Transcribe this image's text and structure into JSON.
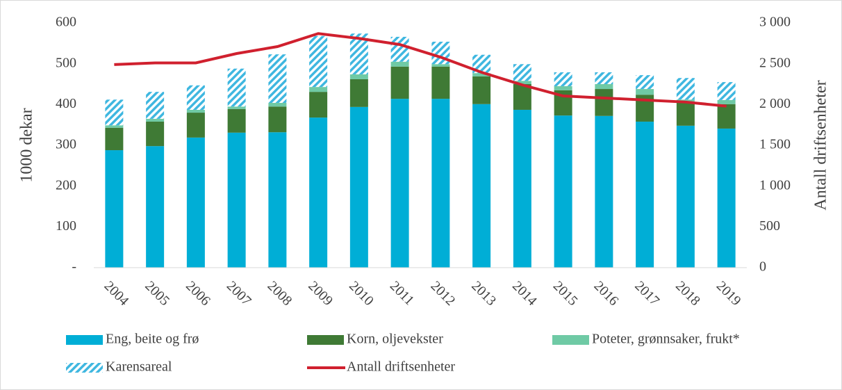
{
  "chart_data": {
    "type": "bar",
    "categories": [
      "2004",
      "2005",
      "2006",
      "2007",
      "2008",
      "2009",
      "2010",
      "2011",
      "2012",
      "2013",
      "2014",
      "2015",
      "2016",
      "2017",
      "2018",
      "2019"
    ],
    "y_label": "1000 dekar",
    "y2_label": "Antall driftsenheter",
    "ylim": [
      0,
      600
    ],
    "yticks": [
      {
        "value": 0,
        "label": "-"
      },
      100,
      200,
      300,
      400,
      500,
      600
    ],
    "y2lim": [
      0,
      3000
    ],
    "y2ticks": [
      0,
      500,
      {
        "value": 1000,
        "label": "1 000"
      },
      {
        "value": 1500,
        "label": "1 500"
      },
      {
        "value": 2000,
        "label": "2 000"
      },
      {
        "value": 2500,
        "label": "2 500"
      },
      {
        "value": 3000,
        "label": "3 000"
      }
    ],
    "grid": false,
    "stacked": true,
    "series": [
      {
        "name": "Eng, beite og frø",
        "color": "#00aed6",
        "values": [
          288,
          298,
          319,
          331,
          332,
          368,
          394,
          414,
          414,
          401,
          387,
          373,
          372,
          358,
          348,
          341
        ]
      },
      {
        "name": "Korn, oljevekster",
        "color": "#3f7a35",
        "values": [
          55,
          60,
          61,
          58,
          63,
          63,
          68,
          79,
          79,
          68,
          63,
          62,
          66,
          66,
          56,
          60
        ]
      },
      {
        "name": "Poteter, grønnsaker, frukt*",
        "color": "#6fcaa5",
        "values": [
          6,
          7,
          7,
          6,
          9,
          12,
          12,
          12,
          6,
          8,
          8,
          10,
          12,
          14,
          8,
          10
        ]
      },
      {
        "name": "Karensareal",
        "color": "#3fb7e0",
        "hatch": true,
        "values": [
          63,
          66,
          60,
          93,
          119,
          125,
          100,
          61,
          55,
          45,
          41,
          34,
          29,
          34,
          53,
          44
        ]
      },
      {
        "name": "Antall driftsenheter",
        "type": "line",
        "axis": "y2",
        "color": "#d0202e",
        "values": [
          2490,
          2510,
          2510,
          2625,
          2710,
          2870,
          2810,
          2735,
          2580,
          2395,
          2240,
          2105,
          2080,
          2055,
          2030,
          1980
        ]
      }
    ]
  }
}
